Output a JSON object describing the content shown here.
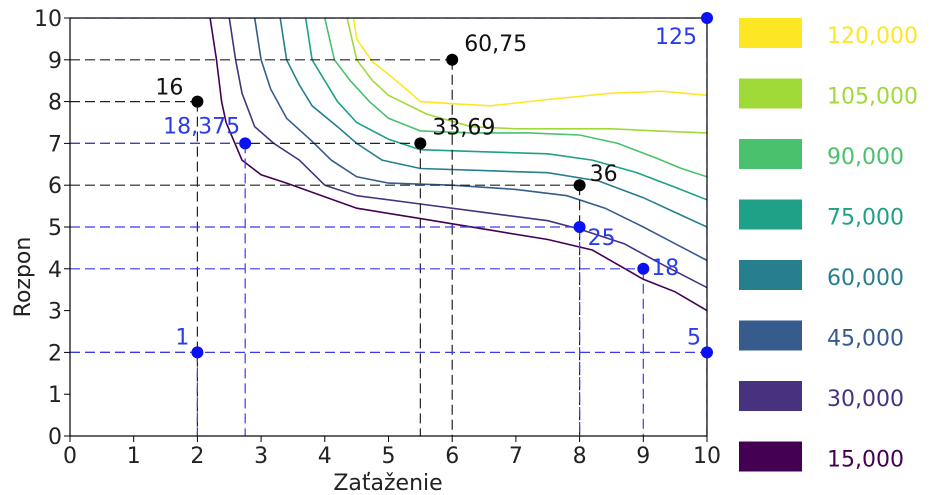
{
  "chart_data": {
    "type": "contour",
    "xlabel": "Zaťaženie",
    "ylabel": "Rozpon",
    "xlim": [
      0,
      10
    ],
    "ylim": [
      0,
      10
    ],
    "x_ticks": [
      "0",
      "1",
      "2",
      "3",
      "4",
      "5",
      "6",
      "7",
      "8",
      "9",
      "10"
    ],
    "y_ticks": [
      "0",
      "1",
      "2",
      "3",
      "4",
      "5",
      "6",
      "7",
      "8",
      "9",
      "10"
    ],
    "legend_position": "right",
    "levels": [
      {
        "label": "15,000",
        "color": "#440154"
      },
      {
        "label": "30,000",
        "color": "#46327e"
      },
      {
        "label": "45,000",
        "color": "#365c8d"
      },
      {
        "label": "60,000",
        "color": "#277f8e"
      },
      {
        "label": "75,000",
        "color": "#1fa187"
      },
      {
        "label": "90,000",
        "color": "#4ac16d"
      },
      {
        "label": "105,000",
        "color": "#a0da39"
      },
      {
        "label": "120,000",
        "color": "#fde725"
      }
    ],
    "contours": [
      {
        "level": "15,000",
        "points": [
          [
            2.2,
            10
          ],
          [
            2.3,
            9
          ],
          [
            2.38,
            8
          ],
          [
            2.45,
            7.5
          ],
          [
            2.7,
            6.6
          ],
          [
            3.0,
            6.25
          ],
          [
            3.4,
            6.05
          ],
          [
            4.5,
            5.45
          ],
          [
            5.5,
            5.2
          ],
          [
            6.5,
            4.95
          ],
          [
            7.5,
            4.7
          ],
          [
            8.2,
            4.45
          ],
          [
            9.0,
            3.75
          ],
          [
            9.5,
            3.45
          ],
          [
            10,
            3.0
          ]
        ]
      },
      {
        "level": "30,000",
        "points": [
          [
            2.5,
            10
          ],
          [
            2.6,
            9
          ],
          [
            2.7,
            8.2
          ],
          [
            2.9,
            7.4
          ],
          [
            3.2,
            7.0
          ],
          [
            3.6,
            6.6
          ],
          [
            4.0,
            6.0
          ],
          [
            4.5,
            5.75
          ],
          [
            5.5,
            5.55
          ],
          [
            6.5,
            5.35
          ],
          [
            7.5,
            5.15
          ],
          [
            8.0,
            4.95
          ],
          [
            8.7,
            4.6
          ],
          [
            9.3,
            4.1
          ],
          [
            10,
            3.55
          ]
        ]
      },
      {
        "level": "45,000",
        "points": [
          [
            2.9,
            10
          ],
          [
            3.0,
            9
          ],
          [
            3.15,
            8.3
          ],
          [
            3.4,
            7.6
          ],
          [
            3.8,
            7.05
          ],
          [
            4.1,
            6.6
          ],
          [
            4.5,
            6.2
          ],
          [
            5.0,
            6.05
          ],
          [
            6.0,
            6.0
          ],
          [
            7.0,
            5.9
          ],
          [
            7.8,
            5.75
          ],
          [
            8.4,
            5.45
          ],
          [
            9.0,
            5.0
          ],
          [
            9.5,
            4.6
          ],
          [
            10,
            4.2
          ]
        ]
      },
      {
        "level": "60,000",
        "points": [
          [
            3.3,
            10
          ],
          [
            3.4,
            9
          ],
          [
            3.6,
            8.4
          ],
          [
            3.8,
            7.9
          ],
          [
            4.2,
            7.4
          ],
          [
            4.5,
            7.0
          ],
          [
            4.9,
            6.6
          ],
          [
            5.5,
            6.4
          ],
          [
            6.5,
            6.35
          ],
          [
            7.5,
            6.3
          ],
          [
            8.3,
            6.1
          ],
          [
            9.0,
            5.7
          ],
          [
            9.5,
            5.35
          ],
          [
            10,
            5.0
          ]
        ]
      },
      {
        "level": "75,000",
        "points": [
          [
            3.7,
            10
          ],
          [
            3.8,
            9
          ],
          [
            4.0,
            8.5
          ],
          [
            4.2,
            8.0
          ],
          [
            4.5,
            7.5
          ],
          [
            5.0,
            7.1
          ],
          [
            5.5,
            6.85
          ],
          [
            6.5,
            6.8
          ],
          [
            7.5,
            6.75
          ],
          [
            8.2,
            6.6
          ],
          [
            8.9,
            6.3
          ],
          [
            9.5,
            5.95
          ],
          [
            10,
            5.65
          ]
        ]
      },
      {
        "level": "90,000",
        "points": [
          [
            4.0,
            10
          ],
          [
            4.15,
            9
          ],
          [
            4.4,
            8.5
          ],
          [
            4.7,
            8.0
          ],
          [
            5.0,
            7.6
          ],
          [
            5.5,
            7.3
          ],
          [
            6.3,
            7.25
          ],
          [
            7.2,
            7.25
          ],
          [
            8.0,
            7.2
          ],
          [
            8.6,
            7.0
          ],
          [
            9.2,
            6.65
          ],
          [
            9.6,
            6.4
          ],
          [
            10,
            6.2
          ]
        ]
      },
      {
        "level": "105,000",
        "points": [
          [
            4.35,
            10
          ],
          [
            4.5,
            9
          ],
          [
            4.75,
            8.5
          ],
          [
            5.0,
            8.15
          ],
          [
            5.6,
            7.7
          ],
          [
            6.3,
            7.4
          ],
          [
            7.0,
            7.35
          ],
          [
            7.8,
            7.35
          ],
          [
            8.5,
            7.35
          ],
          [
            9.2,
            7.3
          ],
          [
            10,
            7.25
          ]
        ]
      },
      {
        "level": "120,000",
        "points": [
          [
            4.45,
            10
          ],
          [
            4.5,
            9.5
          ],
          [
            4.75,
            8.95
          ],
          [
            5.0,
            8.65
          ],
          [
            5.2,
            8.4
          ],
          [
            5.5,
            8.0
          ],
          [
            6.0,
            7.95
          ],
          [
            6.6,
            7.9
          ],
          [
            7.5,
            8.05
          ],
          [
            8.5,
            8.2
          ],
          [
            9.3,
            8.25
          ],
          [
            10,
            8.15
          ]
        ]
      }
    ],
    "annotations_black": [
      {
        "x": 2,
        "y": 8,
        "label": "16"
      },
      {
        "x": 5.5,
        "y": 7,
        "label": "33,69"
      },
      {
        "x": 6,
        "y": 9,
        "label": "60,75"
      },
      {
        "x": 8,
        "y": 6,
        "label": "36"
      }
    ],
    "annotations_blue": [
      {
        "x": 2,
        "y": 2,
        "label": "1"
      },
      {
        "x": 2.75,
        "y": 7,
        "label": "18,375"
      },
      {
        "x": 8,
        "y": 5,
        "label": "25"
      },
      {
        "x": 9,
        "y": 4,
        "label": "18"
      },
      {
        "x": 10,
        "y": 2,
        "label": "5"
      },
      {
        "x": 10,
        "y": 10,
        "label": "125"
      }
    ]
  }
}
